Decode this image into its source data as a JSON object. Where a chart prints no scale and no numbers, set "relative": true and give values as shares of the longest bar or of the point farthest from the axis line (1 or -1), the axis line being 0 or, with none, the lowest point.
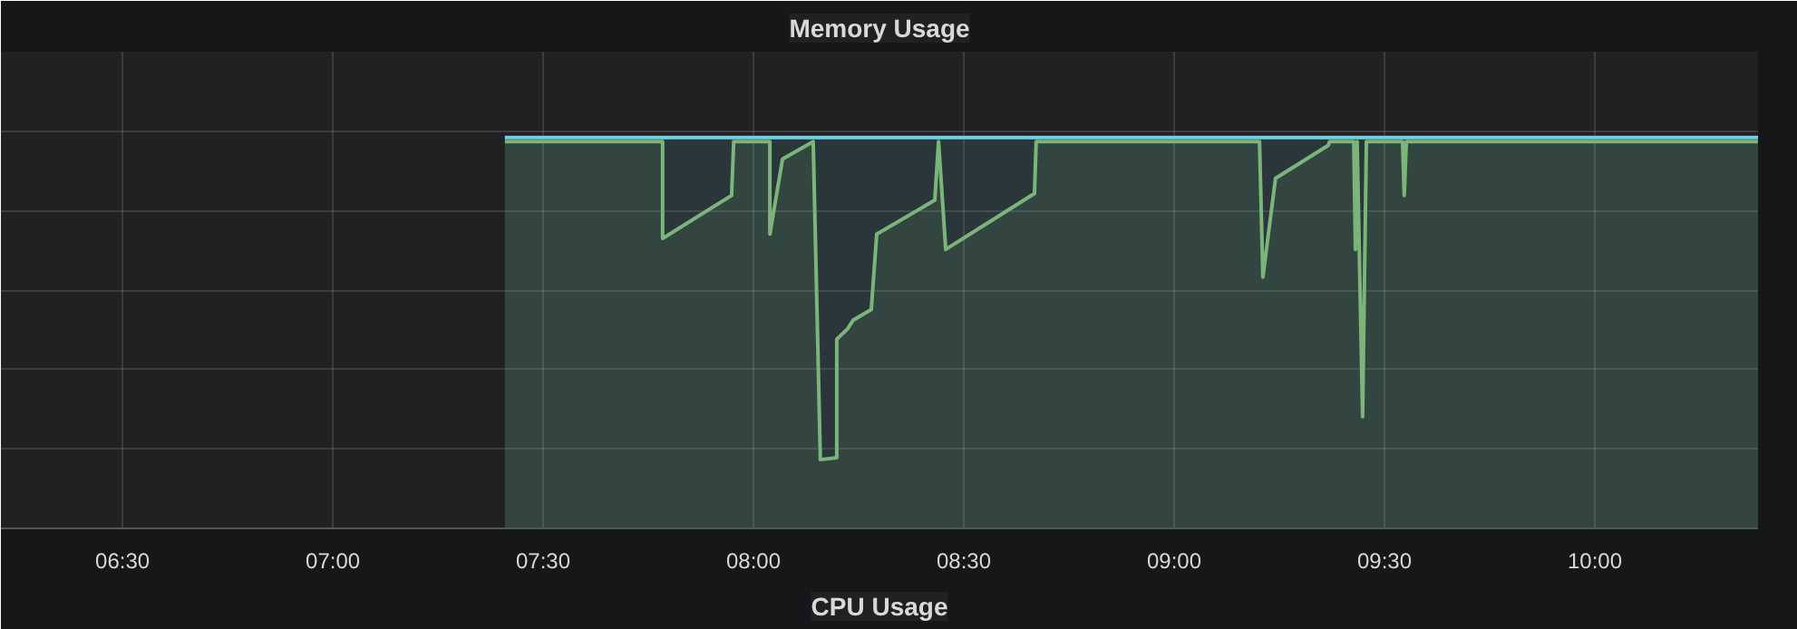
{
  "chart_data": {
    "type": "area",
    "title": "Memory Usage",
    "annotations": [
      "CPU Usage"
    ],
    "relative": true,
    "grid": true,
    "xlim": [
      6.211,
      10.388
    ],
    "xticks": [
      {
        "value": 6.5,
        "label": "06:30"
      },
      {
        "value": 7,
        "label": "07:00"
      },
      {
        "value": 7.5,
        "label": "07:30"
      },
      {
        "value": 8,
        "label": "08:00"
      },
      {
        "value": 8.5,
        "label": "08:30"
      },
      {
        "value": 9,
        "label": "09:00"
      },
      {
        "value": 9.5,
        "label": "09:30"
      },
      {
        "value": 10,
        "label": "10:00"
      }
    ],
    "series": [
      {
        "color": "#7eb26d",
        "x": [
          7.409,
          7.784,
          7.784,
          7.948,
          7.953,
          8.039,
          8.039,
          8.069,
          8.142,
          8.159,
          8.198,
          8.198,
          8.224,
          8.237,
          8.28,
          8.293,
          8.431,
          8.44,
          8.457,
          8.668,
          8.672,
          9.203,
          9.211,
          9.241,
          9.366,
          9.37,
          9.427,
          9.431,
          9.435,
          9.448,
          9.457,
          9.543,
          9.547,
          9.552,
          10.388
        ],
        "values": [
          0.99,
          0.99,
          0.742,
          0.852,
          0.99,
          0.99,
          0.753,
          0.945,
          0.99,
          0.176,
          0.181,
          0.484,
          0.511,
          0.533,
          0.56,
          0.753,
          0.84,
          0.99,
          0.714,
          0.857,
          0.99,
          0.99,
          0.643,
          0.896,
          0.98,
          0.99,
          0.99,
          0.714,
          0.99,
          0.286,
          0.99,
          0.99,
          0.852,
          0.99,
          0.99
        ]
      },
      {
        "color": "#6ed0e0",
        "x": [
          7.409,
          10.388
        ],
        "values": [
          1,
          1
        ]
      }
    ]
  }
}
